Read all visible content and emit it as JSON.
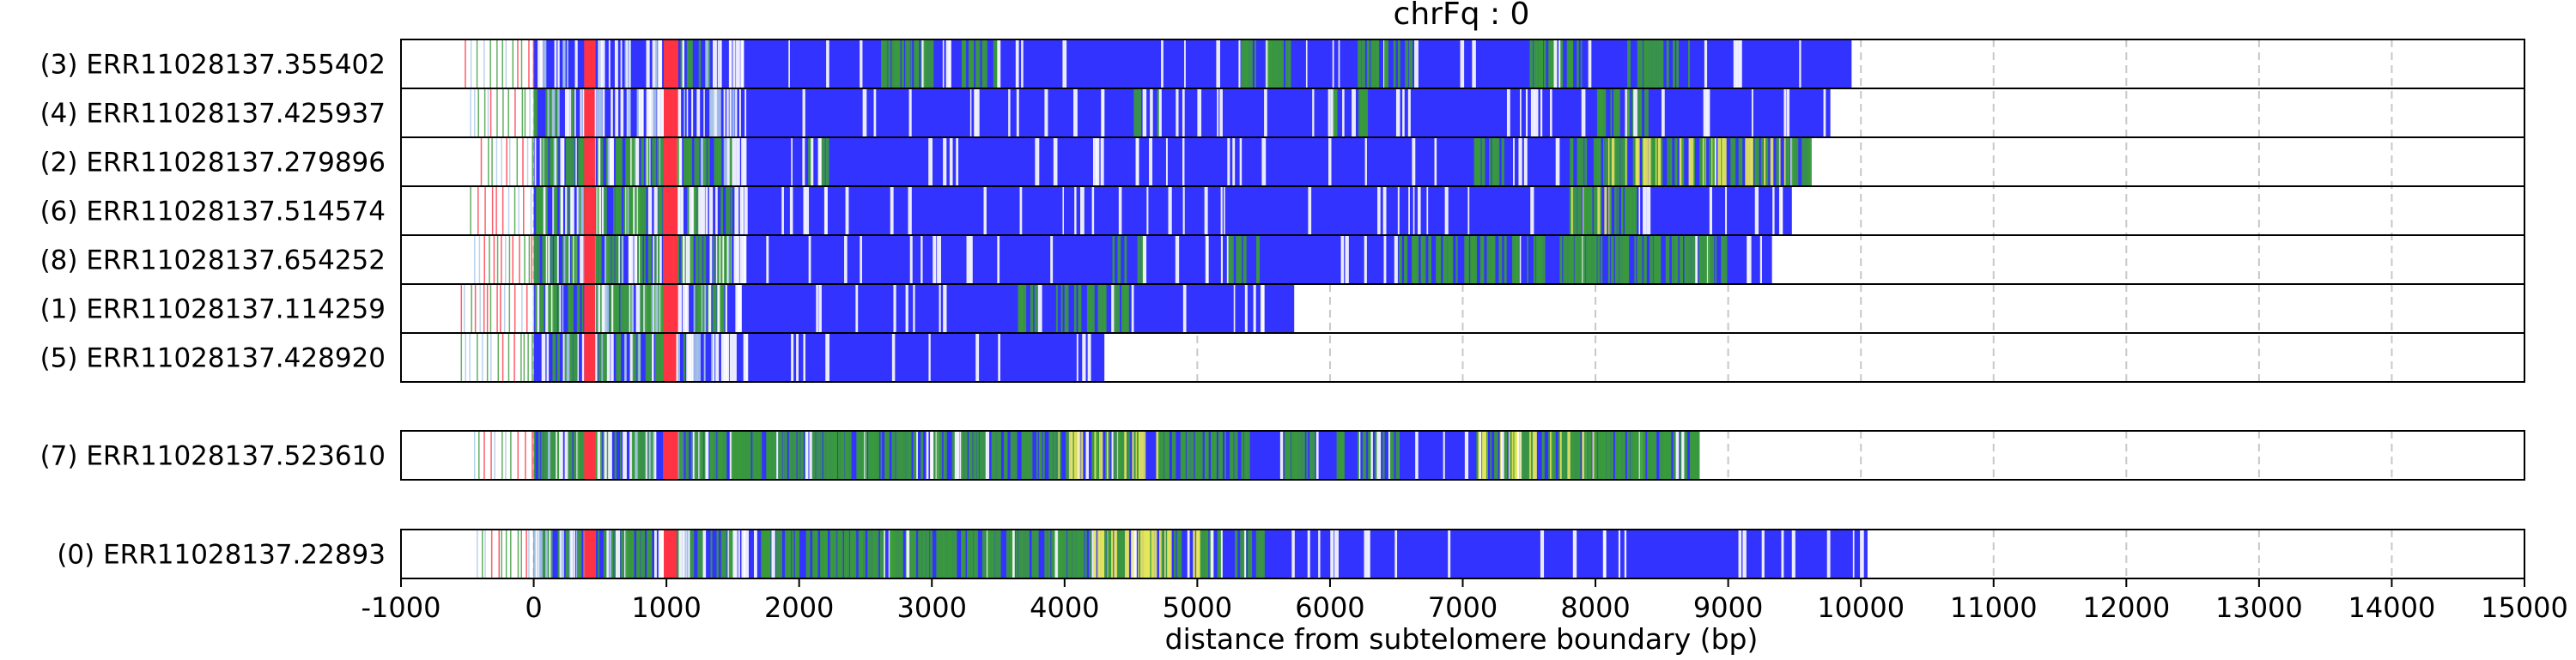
{
  "chart_data": {
    "type": "bar",
    "title": "chrFq : 0",
    "xlabel": "distance from subtelomere boundary (bp)",
    "ylabel": "",
    "xlim": [
      -1000,
      15000
    ],
    "x_ticks": [
      "-1000",
      "0",
      "1000",
      "2000",
      "3000",
      "4000",
      "5000",
      "6000",
      "7000",
      "8000",
      "9000",
      "10000",
      "11000",
      "12000",
      "13000",
      "14000",
      "15000"
    ],
    "grid": "vertical-dashed",
    "colors": {
      "blue": "#3333ff",
      "green": "#3a9b3a",
      "yellow": "#e8e85a",
      "red": "#ff3344",
      "light": "#a9c8e8"
    },
    "groups": [
      {
        "reads": [
          {
            "label": "(3) ERR11028137.355402",
            "start": -520,
            "end": 9930,
            "green_zones": [
              [
                1000,
                1400,
                0.3
              ],
              [
                2600,
                3000,
                0.7
              ],
              [
                3200,
                3500,
                0.5
              ],
              [
                5300,
                5700,
                0.6
              ],
              [
                6200,
                6600,
                0.6
              ],
              [
                7500,
                7900,
                0.5
              ],
              [
                8200,
                8700,
                0.5
              ]
            ],
            "yellow_zones": []
          },
          {
            "label": "(4) ERR11028137.425937",
            "start": -480,
            "end": 9770,
            "green_zones": [
              [
                0,
                400,
                0.3
              ],
              [
                4500,
                4700,
                0.2
              ],
              [
                6000,
                6300,
                0.3
              ],
              [
                8000,
                8400,
                0.3
              ]
            ],
            "yellow_zones": []
          },
          {
            "label": "(2) ERR11028137.279896",
            "start": -400,
            "end": 9620,
            "green_zones": [
              [
                0,
                1500,
                0.4
              ],
              [
                2000,
                2400,
                0.2
              ],
              [
                7000,
                7300,
                0.3
              ],
              [
                7800,
                9600,
                0.6
              ]
            ],
            "yellow_zones": [
              [
                8000,
                9600,
                0.5
              ]
            ]
          },
          {
            "label": "(6) ERR11028137.514574",
            "start": -480,
            "end": 9480,
            "green_zones": [
              [
                0,
                1500,
                0.4
              ],
              [
                7800,
                8300,
                0.7
              ]
            ],
            "yellow_zones": [
              [
                7800,
                8200,
                0.3
              ]
            ]
          },
          {
            "label": "(8) ERR11028137.654252",
            "start": -450,
            "end": 9330,
            "green_zones": [
              [
                0,
                1500,
                0.4
              ],
              [
                4300,
                4600,
                0.2
              ],
              [
                5200,
                5500,
                0.4
              ],
              [
                6500,
                9000,
                0.5
              ]
            ],
            "yellow_zones": []
          },
          {
            "label": "(1) ERR11028137.114259",
            "start": -550,
            "end": 5730,
            "green_zones": [
              [
                0,
                1500,
                0.4
              ],
              [
                3600,
                4600,
                0.3
              ]
            ],
            "yellow_zones": []
          },
          {
            "label": "(5) ERR11028137.428920",
            "start": -550,
            "end": 4300,
            "green_zones": [
              [
                0,
                1200,
                0.4
              ]
            ],
            "yellow_zones": []
          }
        ]
      },
      {
        "reads": [
          {
            "label": "(7) ERR11028137.523610",
            "start": -450,
            "end": 8780,
            "green_zones": [
              [
                0,
                1000,
                0.5
              ],
              [
                1000,
                3900,
                0.6
              ],
              [
                3900,
                5400,
                0.6
              ],
              [
                5600,
                6500,
                0.3
              ],
              [
                7100,
                8800,
                0.7
              ]
            ],
            "yellow_zones": [
              [
                3900,
                4700,
                0.6
              ],
              [
                7100,
                8000,
                0.4
              ]
            ]
          }
        ]
      },
      {
        "reads": [
          {
            "label": "(0) ERR11028137.22893",
            "start": -430,
            "end": 10050,
            "green_zones": [
              [
                0,
                1500,
                0.4
              ],
              [
                1700,
                4200,
                0.6
              ],
              [
                4200,
                5500,
                0.6
              ]
            ],
            "yellow_zones": [
              [
                4200,
                5000,
                0.6
              ]
            ]
          }
        ]
      }
    ]
  }
}
